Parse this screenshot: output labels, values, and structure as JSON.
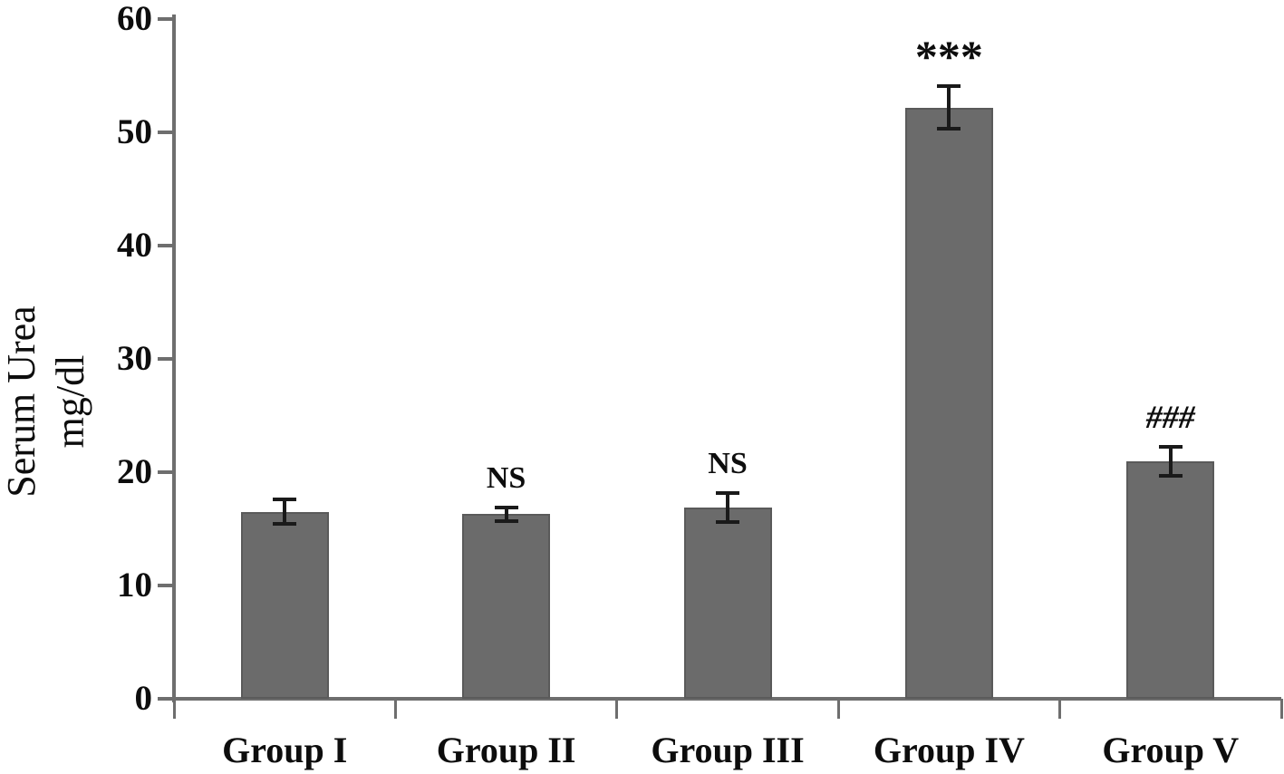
{
  "chart_data": {
    "type": "bar",
    "title": "",
    "ylabel_line1": "Serum Urea",
    "ylabel_line2": "mg/dl",
    "xlabel": "",
    "categories": [
      "Group I",
      "Group II",
      "Group III",
      "Group IV",
      "Group V"
    ],
    "values": [
      16.5,
      16.3,
      16.9,
      52.2,
      21.0
    ],
    "errors": [
      1.0,
      0.5,
      1.2,
      1.8,
      1.2
    ],
    "annotations": [
      "",
      "NS",
      "NS",
      "***",
      "###"
    ],
    "yticks": [
      "0",
      "10",
      "20",
      "30",
      "40",
      "50",
      "60"
    ],
    "ytick_values": [
      0,
      10,
      20,
      30,
      40,
      50,
      60
    ],
    "ylim": [
      0,
      60
    ],
    "grid": "off",
    "legend": "none",
    "bar_color": "#6b6b6b",
    "bar_border_color": "#5a5a5a",
    "axis_color": "#6e6e6e",
    "text_color": "#0d0d0d",
    "error_bar_color": "#1a1a1a"
  }
}
